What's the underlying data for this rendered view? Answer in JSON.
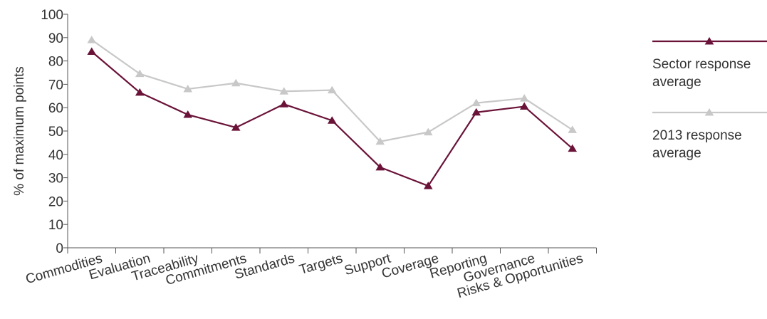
{
  "chart_data": {
    "type": "line",
    "categories": [
      "Commodities",
      "Evaluation",
      "Traceability",
      "Commitments",
      "Standards",
      "Targets",
      "Support",
      "Coverage",
      "Reporting",
      "Governance",
      "Risks & Opportunities"
    ],
    "series": [
      {
        "name": "2013 response average",
        "legend_lines": [
          "2013 response",
          "average"
        ],
        "color": "#c8c8c8",
        "values": [
          89,
          74.5,
          68,
          70.5,
          67,
          67.5,
          45.5,
          49.5,
          62,
          64,
          50.5
        ]
      },
      {
        "name": "Sector response average",
        "legend_lines": [
          "Sector response",
          "average"
        ],
        "color": "#6a1238",
        "values": [
          84,
          66.5,
          57,
          51.5,
          61.5,
          54.5,
          34.5,
          26.5,
          58,
          60.5,
          42.5
        ]
      }
    ],
    "ylabel": "% of maximum points",
    "xlabel": "",
    "title": "",
    "ylim": [
      0,
      100
    ],
    "yticks": [
      0,
      10,
      20,
      30,
      40,
      50,
      60,
      70,
      80,
      90,
      100
    ],
    "grid": false,
    "legend_position": "right",
    "marker": "triangle"
  }
}
